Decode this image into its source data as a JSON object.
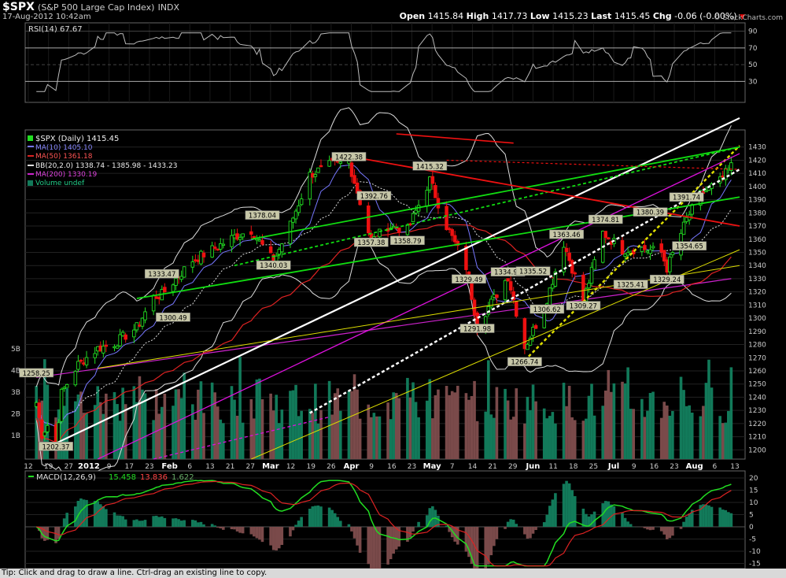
{
  "header": {
    "symbol": "$SPX",
    "name": "(S&P 500 Large Cap Index)",
    "exchange": "INDX",
    "date": "17-Aug-2012 10:42am",
    "open_label": "Open",
    "open": "1415.84",
    "high_label": "High",
    "high": "1417.73",
    "low_label": "Low",
    "low": "1415.23",
    "last_label": "Last",
    "last": "1415.45",
    "chg_label": "Chg",
    "chg": "-0.06 (-0.00%)",
    "watermark": "© StockCharts.com"
  },
  "rsi": {
    "legend": "RSI(14) 67.67",
    "ticks": [
      "90",
      "70",
      "50",
      "30"
    ]
  },
  "legend": {
    "main": "$SPX (Daily) 1415.45",
    "ma10": "MA(10) 1405.10",
    "ma50": "MA(50) 1361.18",
    "bb": "BB(20,2.0) 1338.74 - 1385.98 - 1433.23",
    "ma200": "MA(200) 1330.19",
    "volume": "Volume undef"
  },
  "price_axis": {
    "ticks": [
      "1430",
      "1420",
      "1410",
      "1400",
      "1390",
      "1380",
      "1370",
      "1360",
      "1350",
      "1340",
      "1330",
      "1320",
      "1310",
      "1300",
      "1290",
      "1280",
      "1270",
      "1260",
      "1250",
      "1240",
      "1230",
      "1220",
      "1210",
      "1200"
    ],
    "ylim": [
      1193,
      1440
    ]
  },
  "volume_axis": {
    "ticks": [
      "5B",
      "4B",
      "3B",
      "2B",
      "1B"
    ]
  },
  "x_axis": {
    "ticks": [
      "12",
      "19",
      "27",
      "2012",
      "9",
      "17",
      "23",
      "Feb",
      "6",
      "13",
      "21",
      "27",
      "Mar",
      "12",
      "19",
      "26",
      "Apr",
      "9",
      "16",
      "23",
      "May",
      "7",
      "14",
      "21",
      "29",
      "Jun",
      "11",
      "18",
      "25",
      "Jul",
      "9",
      "16",
      "23",
      "Aug",
      "6",
      "13"
    ]
  },
  "macd": {
    "legend": "MACD(12,26,9)",
    "macd_value": "15.458",
    "signal_value": "13.836",
    "hist_value": "1.622",
    "ticks": [
      "20",
      "15",
      "10",
      "5",
      "0",
      "-5",
      "-10",
      "-15"
    ]
  },
  "colors": {
    "up": "#22dd22",
    "down": "#ee1111",
    "ma10": "#7777ff",
    "ma50": "#dd2222",
    "bb": "#dddddd",
    "ma200": "#cc22cc",
    "vol_up": "#127a5a",
    "vol_down": "#7a4a4a",
    "trend_green": "#11dd11",
    "trend_red": "#ee1111",
    "trend_white": "#ffffff",
    "trend_magenta": "#dd11dd",
    "trend_yellow": "#dddd00"
  },
  "chart_data": {
    "type": "candlestick",
    "title": "$SPX (Daily) 1415.45",
    "ylim": [
      1193,
      1440
    ],
    "annotations": [
      {
        "date": "2011-12-19",
        "label": "1202.37",
        "value": 1202.37
      },
      {
        "date": "2011-12-12",
        "label": "1258.25",
        "value": 1258.25
      },
      {
        "date": "2012-01-30",
        "label": "1300.49",
        "value": 1300.49
      },
      {
        "date": "2012-01-26",
        "label": "1333.47",
        "value": 1333.47
      },
      {
        "date": "2012-03-06",
        "label": "1340.03",
        "value": 1340.03
      },
      {
        "date": "2012-03-02",
        "label": "1378.04",
        "value": 1378.04
      },
      {
        "date": "2012-04-02",
        "label": "1422.38",
        "value": 1422.38
      },
      {
        "date": "2012-04-10",
        "label": "1357.38",
        "value": 1357.38
      },
      {
        "date": "2012-04-11",
        "label": "1392.76",
        "value": 1392.76
      },
      {
        "date": "2012-04-23",
        "label": "1358.79",
        "value": 1358.79
      },
      {
        "date": "2012-05-01",
        "label": "1415.32",
        "value": 1415.32
      },
      {
        "date": "2012-05-15",
        "label": "1329.49",
        "value": 1329.49
      },
      {
        "date": "2012-05-18",
        "label": "1291.98",
        "value": 1291.98
      },
      {
        "date": "2012-05-29",
        "label": "1334.93",
        "value": 1334.93
      },
      {
        "date": "2012-06-04",
        "label": "1266.74",
        "value": 1266.74
      },
      {
        "date": "2012-06-07",
        "label": "1335.52",
        "value": 1335.52
      },
      {
        "date": "2012-06-12",
        "label": "1306.62",
        "value": 1306.62
      },
      {
        "date": "2012-06-19",
        "label": "1363.46",
        "value": 1363.46
      },
      {
        "date": "2012-06-25",
        "label": "1309.27",
        "value": 1309.27
      },
      {
        "date": "2012-07-03",
        "label": "1374.81",
        "value": 1374.81
      },
      {
        "date": "2012-07-12",
        "label": "1325.41",
        "value": 1325.41
      },
      {
        "date": "2012-07-19",
        "label": "1380.39",
        "value": 1380.39
      },
      {
        "date": "2012-07-25",
        "label": "1329.24",
        "value": 1329.24
      },
      {
        "date": "2012-08-01",
        "label": "1391.74",
        "value": 1391.74
      },
      {
        "date": "2012-08-02",
        "label": "1354.65",
        "value": 1354.65
      }
    ],
    "close": [
      {
        "x": "2011-12-12",
        "y": 1236
      },
      {
        "x": "2011-12-14",
        "y": 1212
      },
      {
        "x": "2011-12-16",
        "y": 1219
      },
      {
        "x": "2011-12-19",
        "y": 1205
      },
      {
        "x": "2011-12-21",
        "y": 1243
      },
      {
        "x": "2011-12-27",
        "y": 1265
      },
      {
        "x": "2012-01-03",
        "y": 1277
      },
      {
        "x": "2012-01-09",
        "y": 1281
      },
      {
        "x": "2012-01-17",
        "y": 1293
      },
      {
        "x": "2012-01-23",
        "y": 1316
      },
      {
        "x": "2012-01-26",
        "y": 1318
      },
      {
        "x": "2012-02-06",
        "y": 1344
      },
      {
        "x": "2012-02-13",
        "y": 1352
      },
      {
        "x": "2012-02-21",
        "y": 1362
      },
      {
        "x": "2012-02-27",
        "y": 1367
      },
      {
        "x": "2012-03-06",
        "y": 1343
      },
      {
        "x": "2012-03-12",
        "y": 1371
      },
      {
        "x": "2012-03-19",
        "y": 1409
      },
      {
        "x": "2012-03-26",
        "y": 1416
      },
      {
        "x": "2012-04-02",
        "y": 1419
      },
      {
        "x": "2012-04-10",
        "y": 1358
      },
      {
        "x": "2012-04-16",
        "y": 1370
      },
      {
        "x": "2012-04-23",
        "y": 1367
      },
      {
        "x": "2012-05-01",
        "y": 1405
      },
      {
        "x": "2012-05-07",
        "y": 1370
      },
      {
        "x": "2012-05-14",
        "y": 1339
      },
      {
        "x": "2012-05-18",
        "y": 1295
      },
      {
        "x": "2012-05-29",
        "y": 1332
      },
      {
        "x": "2012-06-04",
        "y": 1278
      },
      {
        "x": "2012-06-11",
        "y": 1308
      },
      {
        "x": "2012-06-18",
        "y": 1357
      },
      {
        "x": "2012-06-25",
        "y": 1313
      },
      {
        "x": "2012-07-02",
        "y": 1365
      },
      {
        "x": "2012-07-09",
        "y": 1352
      },
      {
        "x": "2012-07-16",
        "y": 1353
      },
      {
        "x": "2012-07-23",
        "y": 1350
      },
      {
        "x": "2012-07-25",
        "y": 1338
      },
      {
        "x": "2012-08-01",
        "y": 1375
      },
      {
        "x": "2012-08-06",
        "y": 1394
      },
      {
        "x": "2012-08-13",
        "y": 1404
      },
      {
        "x": "2012-08-17",
        "y": 1415.45
      }
    ],
    "rsi_last": 67.67,
    "macd_last": {
      "macd": 15.458,
      "signal": 13.836,
      "histogram": 1.622
    }
  },
  "footer": {
    "tip": "Tip: Click and drag to draw a line. Ctrl-drag an existing line to copy."
  }
}
